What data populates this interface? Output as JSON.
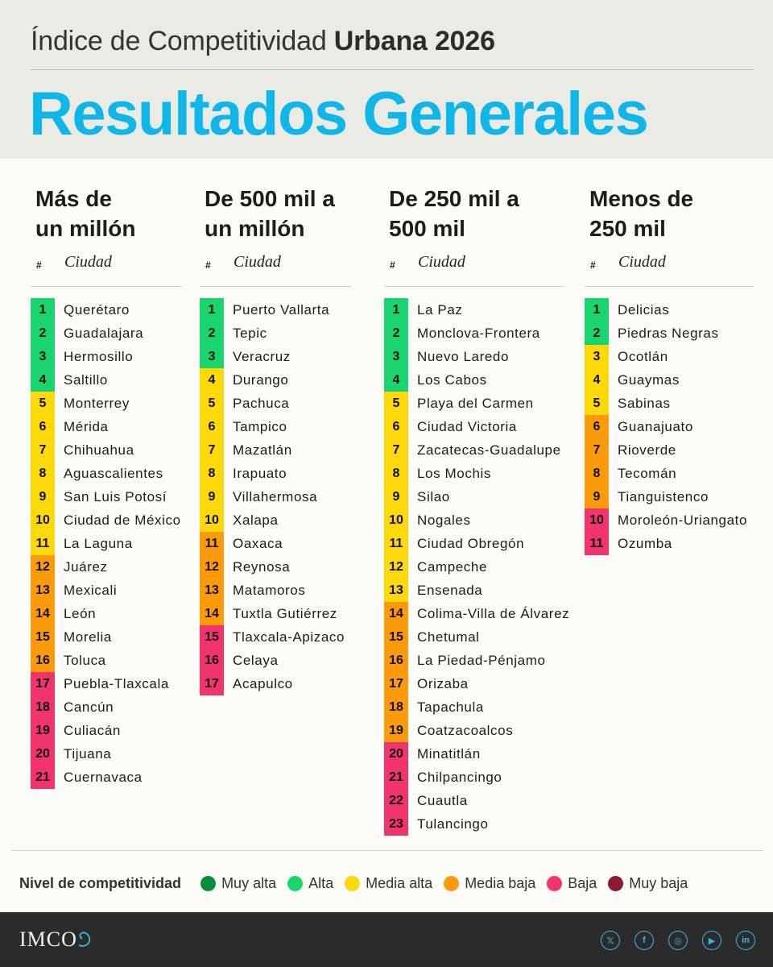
{
  "header": {
    "subtitle_light": "Índice de Competitividad",
    "subtitle_bold": "Urbana 2026",
    "title": "Resultados Generales"
  },
  "table_header": {
    "hash": "#",
    "city": "Ciudad"
  },
  "levels": {
    "muy-alta": "#0a8c3c",
    "alta": "#19d46f",
    "media-alta": "#fdd90c",
    "media-baja": "#fb9a0a",
    "baja": "#f2346c",
    "muy-baja": "#8c1836"
  },
  "columns": [
    {
      "title_line1": "Más de",
      "title_line2": "un millón",
      "rows": [
        {
          "rank": "1",
          "city": "Querétaro",
          "level": "alta"
        },
        {
          "rank": "2",
          "city": "Guadalajara",
          "level": "alta"
        },
        {
          "rank": "3",
          "city": "Hermosillo",
          "level": "alta"
        },
        {
          "rank": "4",
          "city": "Saltillo",
          "level": "alta"
        },
        {
          "rank": "5",
          "city": "Monterrey",
          "level": "media-alta"
        },
        {
          "rank": "6",
          "city": "Mérida",
          "level": "media-alta"
        },
        {
          "rank": "7",
          "city": "Chihuahua",
          "level": "media-alta"
        },
        {
          "rank": "8",
          "city": "Aguascalientes",
          "level": "media-alta"
        },
        {
          "rank": "9",
          "city": "San Luis Potosí",
          "level": "media-alta"
        },
        {
          "rank": "10",
          "city": "Ciudad de México",
          "level": "media-alta"
        },
        {
          "rank": "11",
          "city": "La Laguna",
          "level": "media-alta"
        },
        {
          "rank": "12",
          "city": "Juárez",
          "level": "media-baja"
        },
        {
          "rank": "13",
          "city": "Mexicali",
          "level": "media-baja"
        },
        {
          "rank": "14",
          "city": "León",
          "level": "media-baja"
        },
        {
          "rank": "15",
          "city": "Morelia",
          "level": "media-baja"
        },
        {
          "rank": "16",
          "city": "Toluca",
          "level": "media-baja"
        },
        {
          "rank": "17",
          "city": "Puebla-Tlaxcala",
          "level": "baja"
        },
        {
          "rank": "18",
          "city": "Cancún",
          "level": "baja"
        },
        {
          "rank": "19",
          "city": "Culiacán",
          "level": "baja"
        },
        {
          "rank": "20",
          "city": "Tijuana",
          "level": "baja"
        },
        {
          "rank": "21",
          "city": "Cuernavaca",
          "level": "baja"
        }
      ]
    },
    {
      "title_line1": "De 500 mil a",
      "title_line2": "un millón",
      "rows": [
        {
          "rank": "1",
          "city": "Puerto Vallarta",
          "level": "alta"
        },
        {
          "rank": "2",
          "city": "Tepic",
          "level": "alta"
        },
        {
          "rank": "3",
          "city": "Veracruz",
          "level": "alta"
        },
        {
          "rank": "4",
          "city": "Durango",
          "level": "media-alta"
        },
        {
          "rank": "5",
          "city": "Pachuca",
          "level": "media-alta"
        },
        {
          "rank": "6",
          "city": "Tampico",
          "level": "media-alta"
        },
        {
          "rank": "7",
          "city": "Mazatlán",
          "level": "media-alta"
        },
        {
          "rank": "8",
          "city": "Irapuato",
          "level": "media-alta"
        },
        {
          "rank": "9",
          "city": "Villahermosa",
          "level": "media-alta"
        },
        {
          "rank": "10",
          "city": "Xalapa",
          "level": "media-alta"
        },
        {
          "rank": "11",
          "city": "Oaxaca",
          "level": "media-baja"
        },
        {
          "rank": "12",
          "city": "Reynosa",
          "level": "media-baja"
        },
        {
          "rank": "13",
          "city": "Matamoros",
          "level": "media-baja"
        },
        {
          "rank": "14",
          "city": "Tuxtla Gutiérrez",
          "level": "media-baja"
        },
        {
          "rank": "15",
          "city": "Tlaxcala-Apizaco",
          "level": "baja"
        },
        {
          "rank": "16",
          "city": "Celaya",
          "level": "baja"
        },
        {
          "rank": "17",
          "city": "Acapulco",
          "level": "baja"
        }
      ]
    },
    {
      "title_line1": "De 250 mil a",
      "title_line2": "500 mil",
      "rows": [
        {
          "rank": "1",
          "city": "La Paz",
          "level": "alta"
        },
        {
          "rank": "2",
          "city": "Monclova-Frontera",
          "level": "alta"
        },
        {
          "rank": "3",
          "city": "Nuevo Laredo",
          "level": "alta"
        },
        {
          "rank": "4",
          "city": "Los Cabos",
          "level": "alta"
        },
        {
          "rank": "5",
          "city": "Playa del Carmen",
          "level": "media-alta"
        },
        {
          "rank": "6",
          "city": "Ciudad Victoria",
          "level": "media-alta"
        },
        {
          "rank": "7",
          "city": "Zacatecas-Guadalupe",
          "level": "media-alta"
        },
        {
          "rank": "8",
          "city": "Los Mochis",
          "level": "media-alta"
        },
        {
          "rank": "9",
          "city": "Silao",
          "level": "media-alta"
        },
        {
          "rank": "10",
          "city": "Nogales",
          "level": "media-alta"
        },
        {
          "rank": "11",
          "city": "Ciudad Obregón",
          "level": "media-alta"
        },
        {
          "rank": "12",
          "city": "Campeche",
          "level": "media-alta"
        },
        {
          "rank": "13",
          "city": "Ensenada",
          "level": "media-alta"
        },
        {
          "rank": "14",
          "city": "Colima-Villa de Álvarez",
          "level": "media-baja"
        },
        {
          "rank": "15",
          "city": "Chetumal",
          "level": "media-baja"
        },
        {
          "rank": "16",
          "city": "La Piedad-Pénjamo",
          "level": "media-baja"
        },
        {
          "rank": "17",
          "city": "Orizaba",
          "level": "media-baja"
        },
        {
          "rank": "18",
          "city": "Tapachula",
          "level": "media-baja"
        },
        {
          "rank": "19",
          "city": "Coatzacoalcos",
          "level": "media-baja"
        },
        {
          "rank": "20",
          "city": "Minatitlán",
          "level": "baja"
        },
        {
          "rank": "21",
          "city": "Chilpancingo",
          "level": "baja"
        },
        {
          "rank": "22",
          "city": "Cuautla",
          "level": "baja"
        },
        {
          "rank": "23",
          "city": "Tulancingo",
          "level": "baja"
        }
      ]
    },
    {
      "title_line1": "Menos de",
      "title_line2": "250 mil",
      "rows": [
        {
          "rank": "1",
          "city": "Delicias",
          "level": "alta"
        },
        {
          "rank": "2",
          "city": "Piedras Negras",
          "level": "alta"
        },
        {
          "rank": "3",
          "city": "Ocotlán",
          "level": "media-alta"
        },
        {
          "rank": "4",
          "city": "Guaymas",
          "level": "media-alta"
        },
        {
          "rank": "5",
          "city": "Sabinas",
          "level": "media-alta"
        },
        {
          "rank": "6",
          "city": "Guanajuato",
          "level": "media-baja"
        },
        {
          "rank": "7",
          "city": "Rioverde",
          "level": "media-baja"
        },
        {
          "rank": "8",
          "city": "Tecomán",
          "level": "media-baja"
        },
        {
          "rank": "9",
          "city": "Tianguistenco",
          "level": "media-baja"
        },
        {
          "rank": "10",
          "city": "Moroleón-Uriangato",
          "level": "baja"
        },
        {
          "rank": "11",
          "city": "Ozumba",
          "level": "baja"
        }
      ]
    }
  ],
  "legend": {
    "title": "Nivel de competitividad",
    "items": [
      {
        "label": "Muy alta",
        "color": "#0a8c3c"
      },
      {
        "label": "Alta",
        "color": "#19d46f"
      },
      {
        "label": "Media alta",
        "color": "#fdd90c"
      },
      {
        "label": "Media baja",
        "color": "#fb9a0a"
      },
      {
        "label": "Baja",
        "color": "#f2346c"
      },
      {
        "label": "Muy baja",
        "color": "#8c1836"
      }
    ]
  },
  "footer": {
    "logo": "IMCO",
    "socials": [
      {
        "icon": "x-icon",
        "glyph": "𝕏"
      },
      {
        "icon": "facebook-icon",
        "glyph": "f"
      },
      {
        "icon": "instagram-icon",
        "glyph": "◎"
      },
      {
        "icon": "youtube-icon",
        "glyph": "▶"
      },
      {
        "icon": "linkedin-icon",
        "glyph": "in"
      }
    ]
  }
}
